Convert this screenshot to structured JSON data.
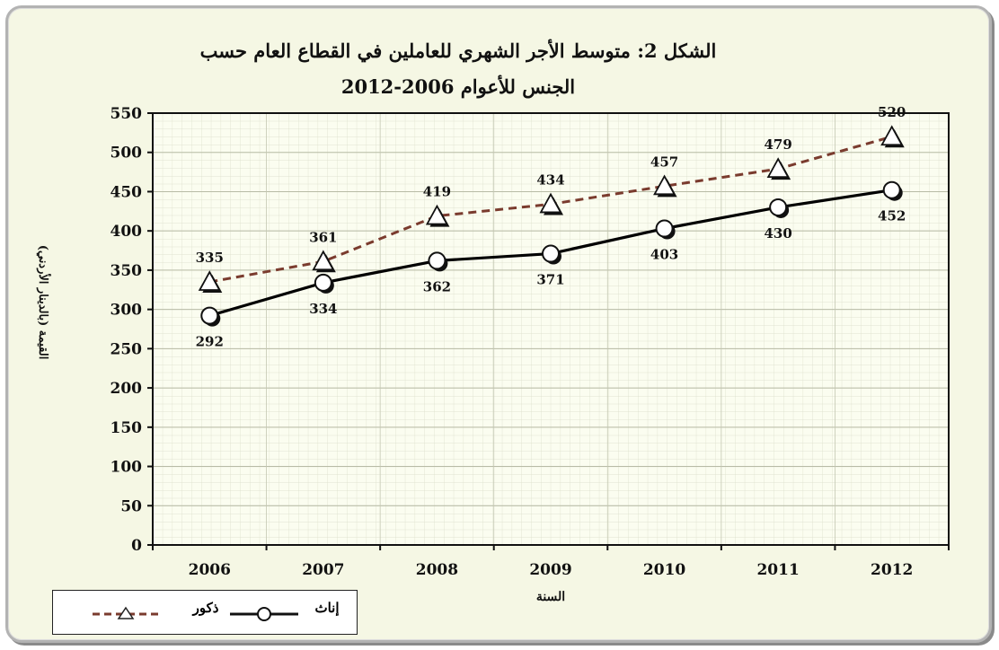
{
  "title_line1": "الشكل 2: متوسط الأجر الشهري للعاملين في القطاع العام حسب",
  "title_line2": "الجنس للأعوام 2006-2012",
  "chart_data": {
    "type": "line",
    "x": [
      "2006",
      "2007",
      "2008",
      "2009",
      "2010",
      "2011",
      "2012"
    ],
    "series": [
      {
        "name": "ذكور",
        "values": [
          335,
          361,
          419,
          434,
          457,
          479,
          520
        ],
        "color": "#7a3b2e",
        "style": "dashed",
        "marker": "triangle"
      },
      {
        "name": "إناث",
        "values": [
          292,
          334,
          362,
          371,
          403,
          430,
          452
        ],
        "color": "#000000",
        "style": "solid",
        "marker": "circle"
      }
    ],
    "xlabel": "السنة",
    "ylabel": "القيمة (بالدينار الأردني)",
    "ylim": [
      0,
      550
    ],
    "yticks": [
      0,
      50,
      100,
      150,
      200,
      250,
      300,
      350,
      400,
      450,
      500,
      550
    ],
    "grid": true,
    "legend_position": "bottom-left"
  }
}
